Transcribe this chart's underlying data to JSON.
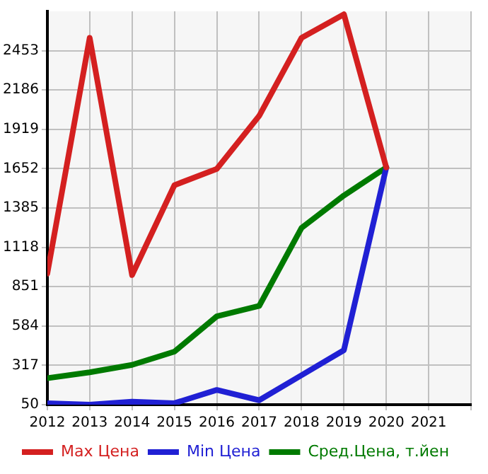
{
  "chart_data": {
    "type": "line",
    "x": [
      2012,
      2013,
      2014,
      2015,
      2016,
      2017,
      2018,
      2019,
      2020
    ],
    "series": [
      {
        "name": "Max Цена",
        "color": "#d42020",
        "values": [
          940,
          2540,
          930,
          1540,
          1650,
          2010,
          2540,
          2700,
          1660
        ]
      },
      {
        "name": "Min Цена",
        "color": "#2020d4",
        "values": [
          60,
          50,
          70,
          60,
          150,
          80,
          250,
          420,
          1660
        ]
      },
      {
        "name": "Сред.Цена, т.йен",
        "color": "#007a00",
        "values": [
          230,
          270,
          320,
          410,
          650,
          720,
          1250,
          1470,
          1660
        ]
      }
    ],
    "xlim": [
      2012,
      2022
    ],
    "xticks": [
      2012,
      2013,
      2014,
      2015,
      2016,
      2017,
      2018,
      2019,
      2020,
      2021,
      {
        "value": 2022,
        "label": null
      }
    ],
    "ylim": [
      50,
      2720
    ],
    "yticks": [
      50,
      317,
      584,
      851,
      1118,
      1385,
      1652,
      1919,
      2186,
      2453
    ],
    "grid": true,
    "legend": "bottom",
    "marker": "none",
    "line_style": "solid"
  }
}
